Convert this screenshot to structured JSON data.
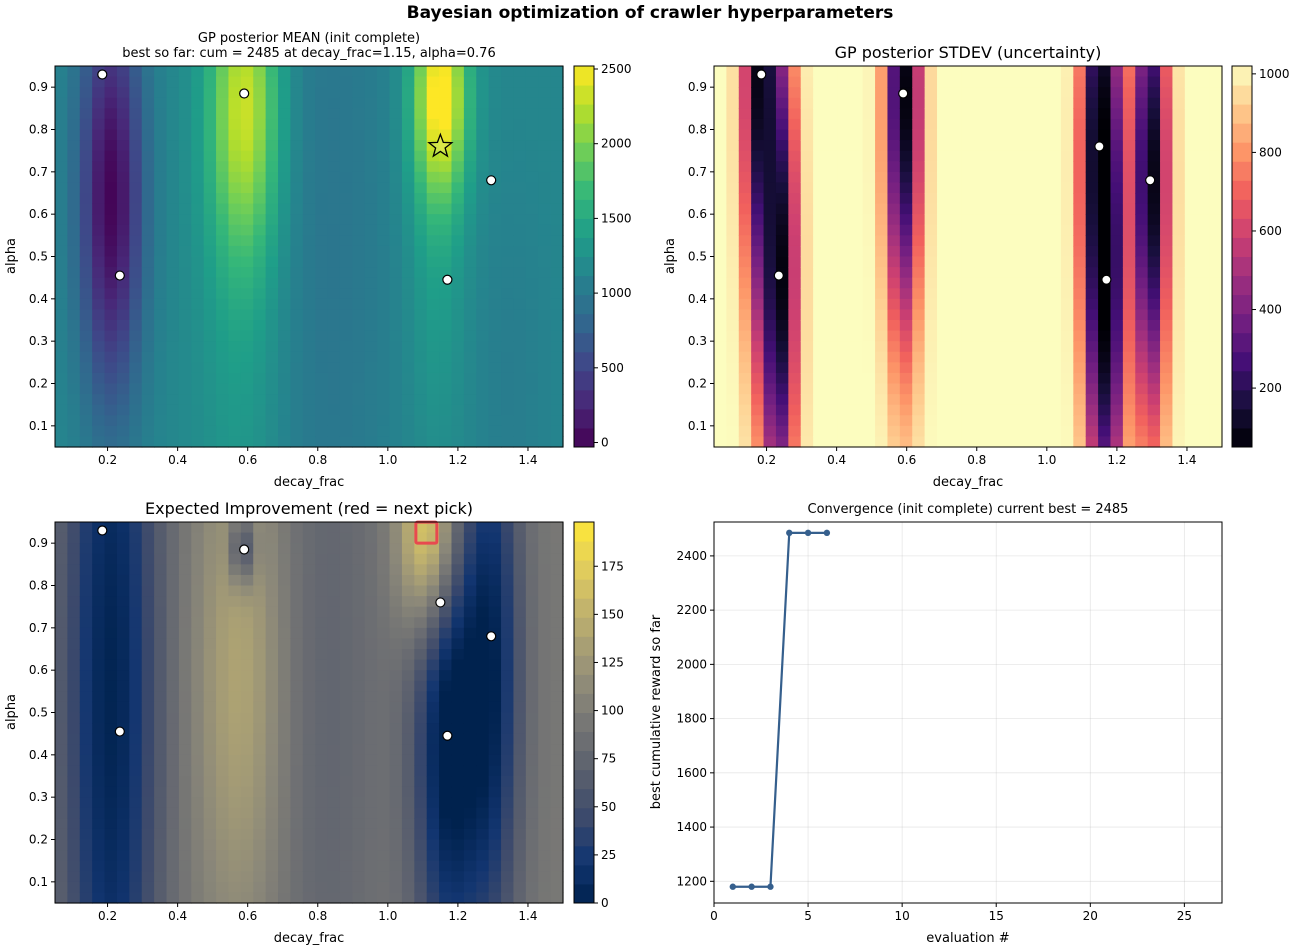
{
  "figure": {
    "title": "Bayesian optimization of crawler hyperparameters"
  },
  "panels": {
    "mean": {
      "title_line1": "GP posterior MEAN  (init complete)",
      "title_line2": "best so far: cum = 2485 at decay_frac=1.15, alpha=0.76",
      "xlabel": "decay_frac",
      "ylabel": "alpha",
      "colorbar_ticks": [
        "0",
        "500",
        "1000",
        "1500",
        "2000",
        "2500"
      ]
    },
    "stdev": {
      "title": "GP posterior STDEV  (uncertainty)",
      "xlabel": "decay_frac",
      "ylabel": "alpha",
      "colorbar_ticks": [
        "200",
        "400",
        "600",
        "800",
        "1000"
      ]
    },
    "ei": {
      "title": "Expected Improvement   (red = next pick)",
      "xlabel": "decay_frac",
      "ylabel": "alpha",
      "colorbar_ticks": [
        "0",
        "25",
        "50",
        "75",
        "100",
        "125",
        "150",
        "175"
      ]
    },
    "convergence": {
      "title": "Convergence  (init complete)    current best = 2485",
      "xlabel": "evaluation #",
      "ylabel": "best cumulative reward so far"
    }
  },
  "axis_ticks": {
    "decay_frac": [
      "0.2",
      "0.4",
      "0.6",
      "0.8",
      "1.0",
      "1.2",
      "1.4"
    ],
    "alpha": [
      "0.1",
      "0.2",
      "0.3",
      "0.4",
      "0.5",
      "0.6",
      "0.7",
      "0.8",
      "0.9"
    ],
    "evaluation": [
      "0",
      "5",
      "10",
      "15",
      "20",
      "25"
    ],
    "reward": [
      "1200",
      "1400",
      "1600",
      "1800",
      "2000",
      "2200",
      "2400"
    ]
  },
  "chart_data": [
    {
      "type": "heatmap",
      "panel": "mean",
      "title": "GP posterior MEAN  (init complete)",
      "subtitle": "best so far: cum = 2485 at decay_frac=1.15, alpha=0.76",
      "xlabel": "decay_frac",
      "ylabel": "alpha",
      "xlim": [
        0.05,
        1.5
      ],
      "ylim": [
        0.05,
        0.95
      ],
      "colormap": "viridis",
      "color_range": [
        -30,
        2520
      ],
      "observations": [
        {
          "decay_frac": 0.185,
          "alpha": 0.93
        },
        {
          "decay_frac": 0.235,
          "alpha": 0.455
        },
        {
          "decay_frac": 0.59,
          "alpha": 0.885
        },
        {
          "decay_frac": 1.17,
          "alpha": 0.445
        },
        {
          "decay_frac": 1.295,
          "alpha": 0.68
        }
      ],
      "best_point": {
        "decay_frac": 1.15,
        "alpha": 0.76,
        "value": 2485
      }
    },
    {
      "type": "heatmap",
      "panel": "stdev",
      "title": "GP posterior STDEV  (uncertainty)",
      "xlabel": "decay_frac",
      "ylabel": "alpha",
      "xlim": [
        0.05,
        1.5
      ],
      "ylim": [
        0.05,
        0.95
      ],
      "colormap": "magma",
      "color_range": [
        50,
        1020
      ],
      "observations": [
        {
          "decay_frac": 0.185,
          "alpha": 0.93
        },
        {
          "decay_frac": 0.235,
          "alpha": 0.455
        },
        {
          "decay_frac": 0.59,
          "alpha": 0.885
        },
        {
          "decay_frac": 1.15,
          "alpha": 0.76
        },
        {
          "decay_frac": 1.17,
          "alpha": 0.445
        },
        {
          "decay_frac": 1.295,
          "alpha": 0.68
        }
      ]
    },
    {
      "type": "heatmap",
      "panel": "ei",
      "title": "Expected Improvement   (red = next pick)",
      "xlabel": "decay_frac",
      "ylabel": "alpha",
      "xlim": [
        0.05,
        1.5
      ],
      "ylim": [
        0.05,
        0.95
      ],
      "colormap": "cividis",
      "color_range": [
        0,
        198
      ],
      "observations": [
        {
          "decay_frac": 0.185,
          "alpha": 0.93
        },
        {
          "decay_frac": 0.235,
          "alpha": 0.455
        },
        {
          "decay_frac": 0.59,
          "alpha": 0.885
        },
        {
          "decay_frac": 1.15,
          "alpha": 0.76
        },
        {
          "decay_frac": 1.17,
          "alpha": 0.445
        },
        {
          "decay_frac": 1.295,
          "alpha": 0.68
        }
      ],
      "next_pick": {
        "decay_frac": 1.11,
        "alpha": 0.925
      }
    },
    {
      "type": "line",
      "panel": "convergence",
      "title": "Convergence  (init complete)    current best = 2485",
      "xlabel": "evaluation #",
      "ylabel": "best cumulative reward so far",
      "xlim": [
        0,
        27
      ],
      "ylim": [
        1120,
        2525
      ],
      "grid": true,
      "series": [
        {
          "x": [
            1,
            2,
            3,
            4,
            5,
            6
          ],
          "values": [
            1180,
            1180,
            1180,
            2485,
            2485,
            2485
          ]
        }
      ]
    }
  ]
}
